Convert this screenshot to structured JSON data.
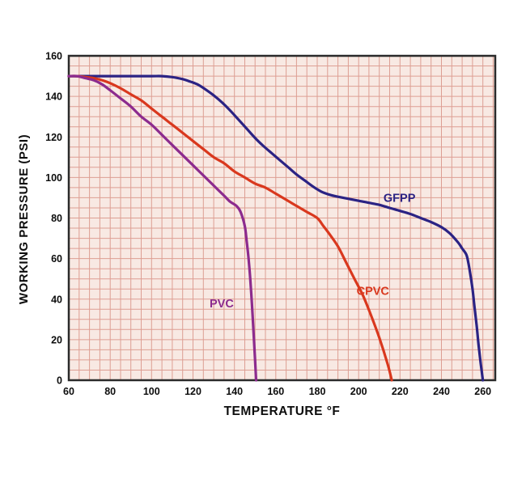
{
  "page": {
    "background": "#ffffff"
  },
  "chart_data": {
    "type": "line",
    "title": "",
    "xlabel": "TEMPERATURE °F",
    "ylabel": "WORKING PRESSURE (PSI)",
    "xlim": [
      60,
      266
    ],
    "ylim": [
      0,
      160
    ],
    "xticks": [
      60,
      80,
      100,
      120,
      140,
      160,
      180,
      200,
      220,
      240,
      260
    ],
    "yticks": [
      0,
      20,
      40,
      60,
      80,
      100,
      120,
      140,
      160
    ],
    "grid": {
      "step_x": 5,
      "step_y": 5,
      "color": "#dd9e93",
      "background": "#f8e9e3",
      "border_color": "#2a2a2a"
    },
    "legend_position": "inline-labels",
    "series": [
      {
        "name": "GFPP",
        "color": "#2b2384",
        "label_pos": {
          "x": 212,
          "y": 88
        },
        "points": [
          [
            60,
            150
          ],
          [
            70,
            150
          ],
          [
            80,
            150
          ],
          [
            90,
            150
          ],
          [
            100,
            150
          ],
          [
            105,
            150
          ],
          [
            110,
            149.5
          ],
          [
            115,
            148.5
          ],
          [
            118,
            147.5
          ],
          [
            122,
            146
          ],
          [
            126,
            143.5
          ],
          [
            130,
            140.5
          ],
          [
            134,
            137
          ],
          [
            138,
            133
          ],
          [
            142,
            128.5
          ],
          [
            146,
            124
          ],
          [
            150,
            119.5
          ],
          [
            154,
            115.5
          ],
          [
            158,
            112
          ],
          [
            162,
            108.5
          ],
          [
            166,
            105
          ],
          [
            170,
            101.5
          ],
          [
            174,
            98.5
          ],
          [
            178,
            95.5
          ],
          [
            182,
            93
          ],
          [
            186,
            91.5
          ],
          [
            190,
            90.5
          ],
          [
            195,
            89.5
          ],
          [
            200,
            88.5
          ],
          [
            205,
            87.5
          ],
          [
            210,
            86.5
          ],
          [
            215,
            85
          ],
          [
            220,
            83.5
          ],
          [
            225,
            82
          ],
          [
            230,
            80
          ],
          [
            235,
            78
          ],
          [
            240,
            75.5
          ],
          [
            244,
            72.5
          ],
          [
            248,
            68
          ],
          [
            250,
            65
          ],
          [
            252,
            62
          ],
          [
            253,
            58
          ],
          [
            254,
            52
          ],
          [
            255,
            45
          ],
          [
            256,
            36
          ],
          [
            257,
            27
          ],
          [
            258,
            17
          ],
          [
            259,
            8
          ],
          [
            260,
            0
          ]
        ]
      },
      {
        "name": "CPVC",
        "color": "#d9381e",
        "label_pos": {
          "x": 199,
          "y": 42
        },
        "points": [
          [
            60,
            150
          ],
          [
            64,
            150
          ],
          [
            68,
            149.5
          ],
          [
            72,
            149
          ],
          [
            76,
            148
          ],
          [
            80,
            146.5
          ],
          [
            85,
            144
          ],
          [
            90,
            141
          ],
          [
            95,
            138
          ],
          [
            100,
            134
          ],
          [
            105,
            130
          ],
          [
            110,
            126
          ],
          [
            115,
            122
          ],
          [
            120,
            118
          ],
          [
            125,
            114
          ],
          [
            130,
            110
          ],
          [
            135,
            107
          ],
          [
            140,
            103
          ],
          [
            145,
            100
          ],
          [
            150,
            97
          ],
          [
            155,
            95
          ],
          [
            160,
            92
          ],
          [
            165,
            89
          ],
          [
            170,
            86
          ],
          [
            175,
            83
          ],
          [
            180,
            80
          ],
          [
            183,
            76
          ],
          [
            186,
            72
          ],
          [
            190,
            66
          ],
          [
            194,
            58
          ],
          [
            198,
            50
          ],
          [
            202,
            42
          ],
          [
            206,
            32
          ],
          [
            210,
            21
          ],
          [
            214,
            8
          ],
          [
            216,
            0
          ]
        ]
      },
      {
        "name": "PVC",
        "color": "#8c2b8e",
        "label_pos": {
          "x": 128,
          "y": 36
        },
        "points": [
          [
            60,
            150
          ],
          [
            64,
            150
          ],
          [
            68,
            149
          ],
          [
            72,
            148
          ],
          [
            76,
            146
          ],
          [
            80,
            143
          ],
          [
            85,
            139
          ],
          [
            90,
            135
          ],
          [
            95,
            130
          ],
          [
            100,
            126
          ],
          [
            105,
            121
          ],
          [
            110,
            116
          ],
          [
            115,
            111
          ],
          [
            120,
            106
          ],
          [
            125,
            101
          ],
          [
            130,
            96
          ],
          [
            135,
            91
          ],
          [
            138,
            88
          ],
          [
            141,
            86
          ],
          [
            143,
            83
          ],
          [
            145,
            76
          ],
          [
            146,
            68
          ],
          [
            147,
            58
          ],
          [
            148,
            45
          ],
          [
            149,
            28
          ],
          [
            150,
            10
          ],
          [
            150.5,
            0
          ]
        ]
      }
    ]
  }
}
